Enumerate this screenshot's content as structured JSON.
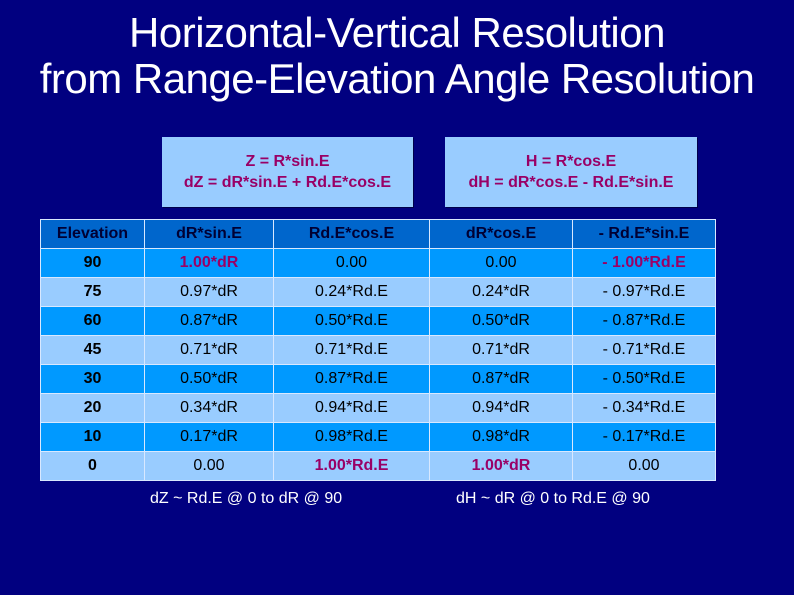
{
  "title": {
    "line1": "Horizontal-Vertical Resolution",
    "line2": "from Range-Elevation Angle Resolution"
  },
  "formulas": {
    "vertical": {
      "line1": "Z = R*sin.E",
      "line2": "dZ = dR*sin.E + Rd.E*cos.E"
    },
    "horizontal": {
      "line1": "H = R*cos.E",
      "line2": "dH = dR*cos.E - Rd.E*sin.E"
    }
  },
  "table": {
    "headers": [
      "Elevation",
      "dR*sin.E",
      "Rd.E*cos.E",
      "dR*cos.E",
      "- Rd.E*sin.E"
    ],
    "rows": [
      [
        "90",
        "1.00*dR",
        "0.00",
        "0.00",
        "- 1.00*Rd.E"
      ],
      [
        "75",
        "0.97*dR",
        "0.24*Rd.E",
        "0.24*dR",
        "- 0.97*Rd.E"
      ],
      [
        "60",
        "0.87*dR",
        "0.50*Rd.E",
        "0.50*dR",
        "- 0.87*Rd.E"
      ],
      [
        "45",
        "0.71*dR",
        "0.71*Rd.E",
        "0.71*dR",
        "- 0.71*Rd.E"
      ],
      [
        "30",
        "0.50*dR",
        "0.87*Rd.E",
        "0.87*dR",
        "- 0.50*Rd.E"
      ],
      [
        "20",
        "0.34*dR",
        "0.94*Rd.E",
        "0.94*dR",
        "- 0.34*Rd.E"
      ],
      [
        "10",
        "0.17*dR",
        "0.98*Rd.E",
        "0.98*dR",
        "- 0.17*Rd.E"
      ],
      [
        "0",
        "0.00",
        "1.00*Rd.E",
        "1.00*dR",
        "0.00"
      ]
    ],
    "highlighted_cells": [
      [
        0,
        1
      ],
      [
        0,
        4
      ],
      [
        7,
        2
      ],
      [
        7,
        3
      ]
    ]
  },
  "notes": {
    "vertical": "dZ ~ Rd.E @ 0  to  dR @ 90",
    "horizontal": "dH ~ dR @ 0  to  Rd.E @ 90"
  },
  "colors": {
    "background": "#010080",
    "formula_box": "#99ccff",
    "formula_text": "#990066",
    "header_row": "#0066cc",
    "row_dark": "#0099ff",
    "row_light": "#99ccff",
    "highlight_text": "#990066"
  }
}
